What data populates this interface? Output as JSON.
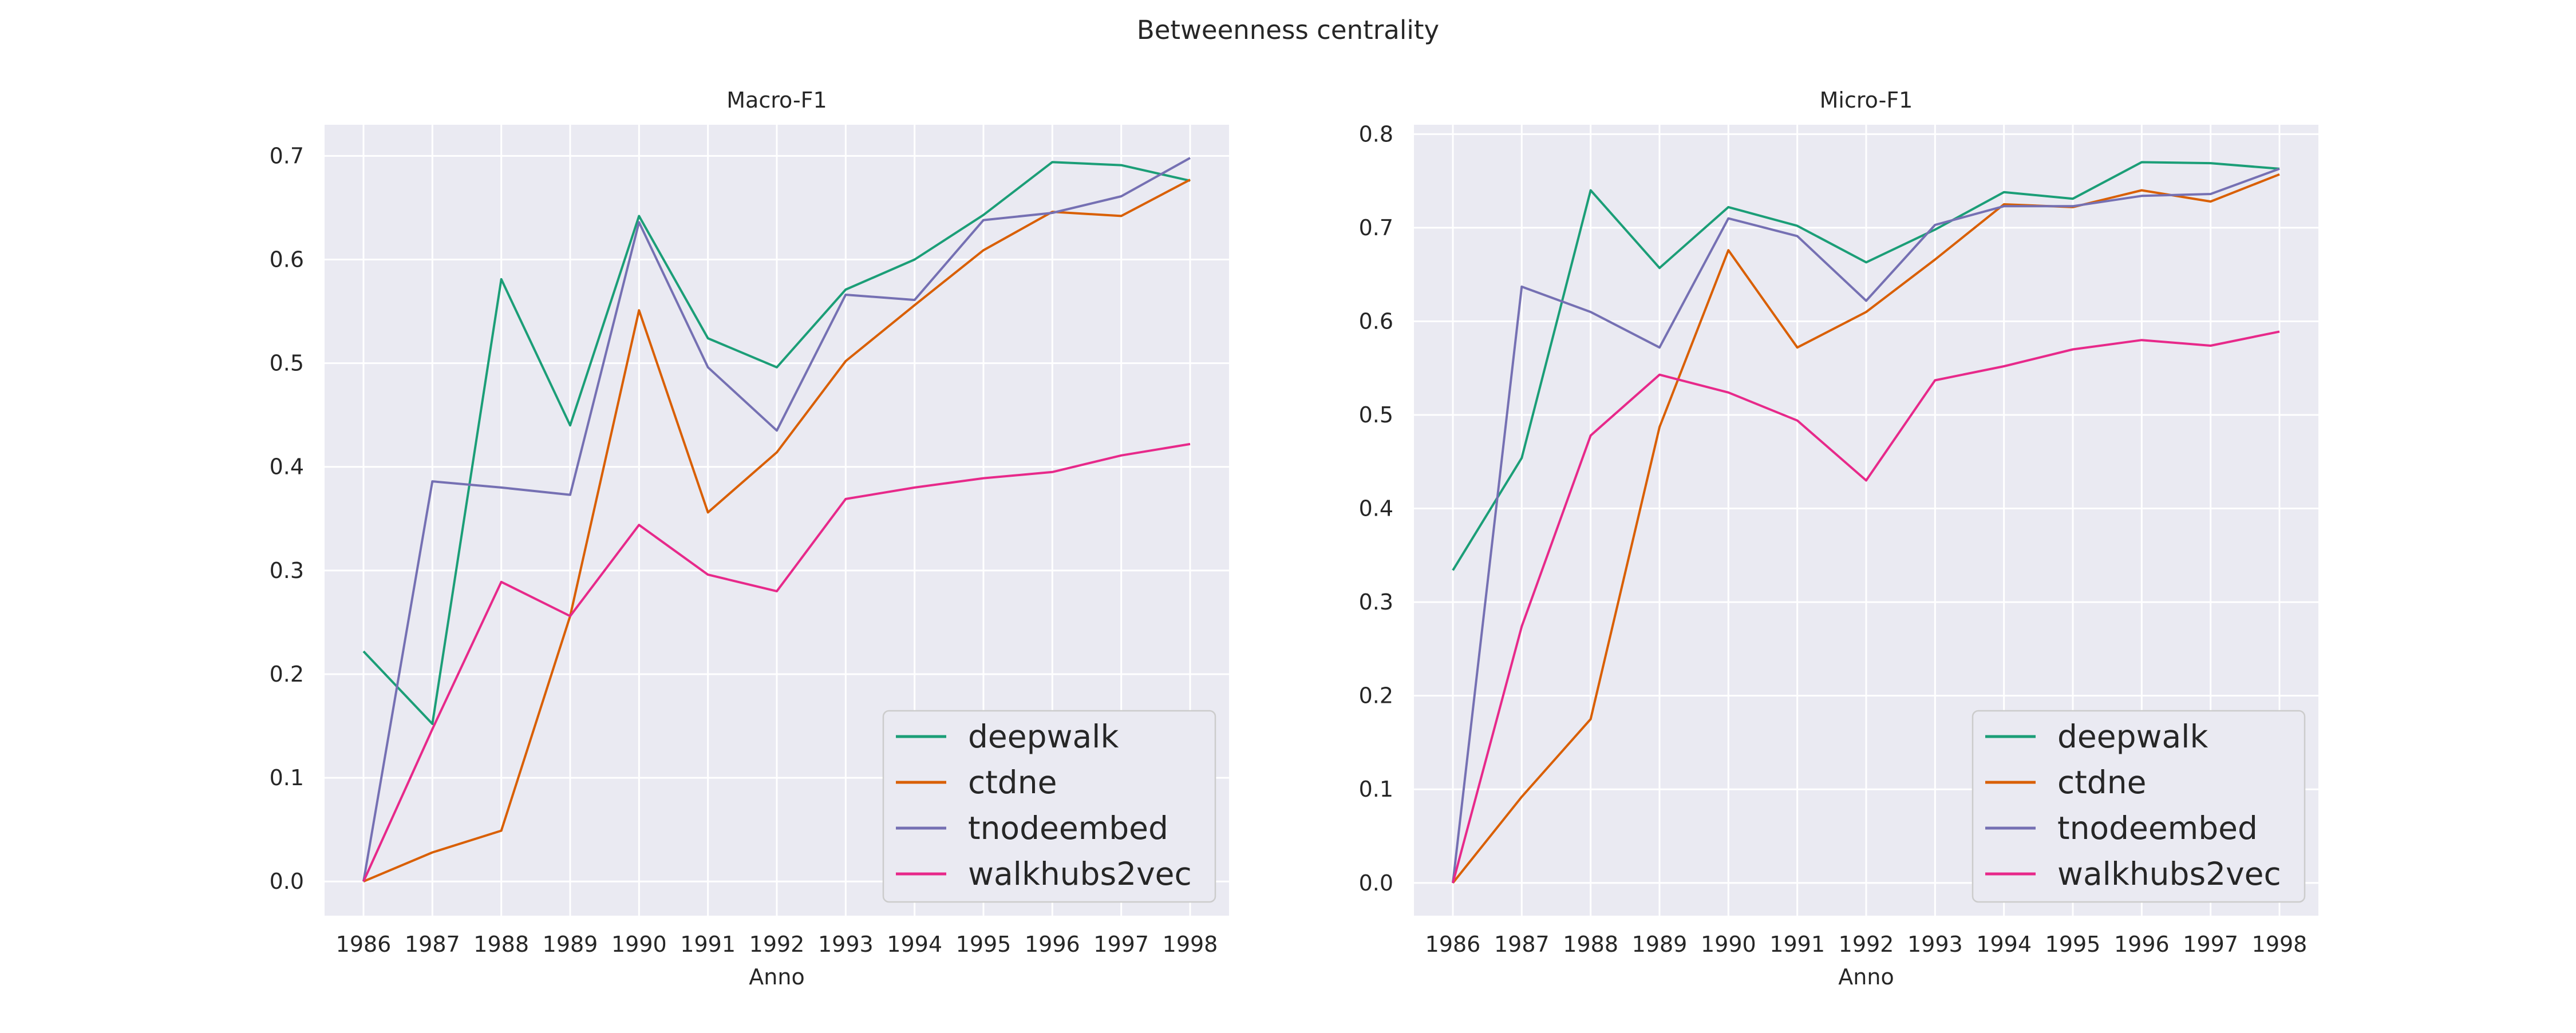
{
  "figure_title": "Betweenness centrality",
  "colors": {
    "deepwalk": "#1b9e77",
    "ctdne": "#d95f02",
    "tnodeembed": "#7570b3",
    "walkhubs2vec": "#e7298a",
    "panel_background": "#eaeaf2",
    "grid": "#ffffff"
  },
  "chart_data": [
    {
      "type": "line",
      "title": "Macro-F1",
      "xlabel": "Anno",
      "ylabel": "",
      "x": [
        1986,
        1987,
        1988,
        1989,
        1990,
        1991,
        1992,
        1993,
        1994,
        1995,
        1996,
        1997,
        1998
      ],
      "ylim": [
        -0.033,
        0.73
      ],
      "yticks": [
        0.0,
        0.1,
        0.2,
        0.3,
        0.4,
        0.5,
        0.6,
        0.7
      ],
      "ytick_labels": [
        "0.0",
        "0.1",
        "0.2",
        "0.3",
        "0.4",
        "0.5",
        "0.6",
        "0.7"
      ],
      "grid": true,
      "legend_position": "lower-right",
      "series": [
        {
          "name": "deepwalk",
          "values": [
            0.222,
            0.152,
            0.581,
            0.44,
            0.642,
            0.524,
            0.496,
            0.571,
            0.6,
            0.643,
            0.694,
            0.691,
            0.676
          ]
        },
        {
          "name": "ctdne",
          "values": [
            0.0,
            0.028,
            0.049,
            0.256,
            0.551,
            0.356,
            0.414,
            0.502,
            0.556,
            0.609,
            0.646,
            0.642,
            0.677
          ]
        },
        {
          "name": "tnodeembed",
          "values": [
            0.0,
            0.386,
            0.38,
            0.373,
            0.636,
            0.496,
            0.435,
            0.566,
            0.561,
            0.638,
            0.645,
            0.661,
            0.698
          ]
        },
        {
          "name": "walkhubs2vec",
          "values": [
            0.0,
            0.147,
            0.289,
            0.256,
            0.344,
            0.296,
            0.28,
            0.369,
            0.38,
            0.389,
            0.395,
            0.411,
            0.422
          ]
        }
      ]
    },
    {
      "type": "line",
      "title": "Micro-F1",
      "xlabel": "Anno",
      "ylabel": "",
      "x": [
        1986,
        1987,
        1988,
        1989,
        1990,
        1991,
        1992,
        1993,
        1994,
        1995,
        1996,
        1997,
        1998
      ],
      "ylim": [
        -0.035,
        0.81
      ],
      "yticks": [
        0.0,
        0.1,
        0.2,
        0.3,
        0.4,
        0.5,
        0.6,
        0.7,
        0.8
      ],
      "ytick_labels": [
        "0.0",
        "0.1",
        "0.2",
        "0.3",
        "0.4",
        "0.5",
        "0.6",
        "0.7",
        "0.8"
      ],
      "grid": true,
      "legend_position": "lower-right",
      "series": [
        {
          "name": "deepwalk",
          "values": [
            0.334,
            0.454,
            0.74,
            0.657,
            0.722,
            0.702,
            0.663,
            0.698,
            0.738,
            0.731,
            0.77,
            0.769,
            0.763
          ]
        },
        {
          "name": "ctdne",
          "values": [
            0.0,
            0.092,
            0.175,
            0.487,
            0.676,
            0.572,
            0.61,
            0.666,
            0.725,
            0.722,
            0.74,
            0.728,
            0.757
          ]
        },
        {
          "name": "tnodeembed",
          "values": [
            0.0,
            0.637,
            0.61,
            0.572,
            0.71,
            0.691,
            0.622,
            0.703,
            0.723,
            0.723,
            0.734,
            0.736,
            0.763
          ]
        },
        {
          "name": "walkhubs2vec",
          "values": [
            0.0,
            0.274,
            0.478,
            0.543,
            0.524,
            0.494,
            0.43,
            0.537,
            0.552,
            0.57,
            0.58,
            0.574,
            0.589
          ]
        }
      ]
    }
  ]
}
